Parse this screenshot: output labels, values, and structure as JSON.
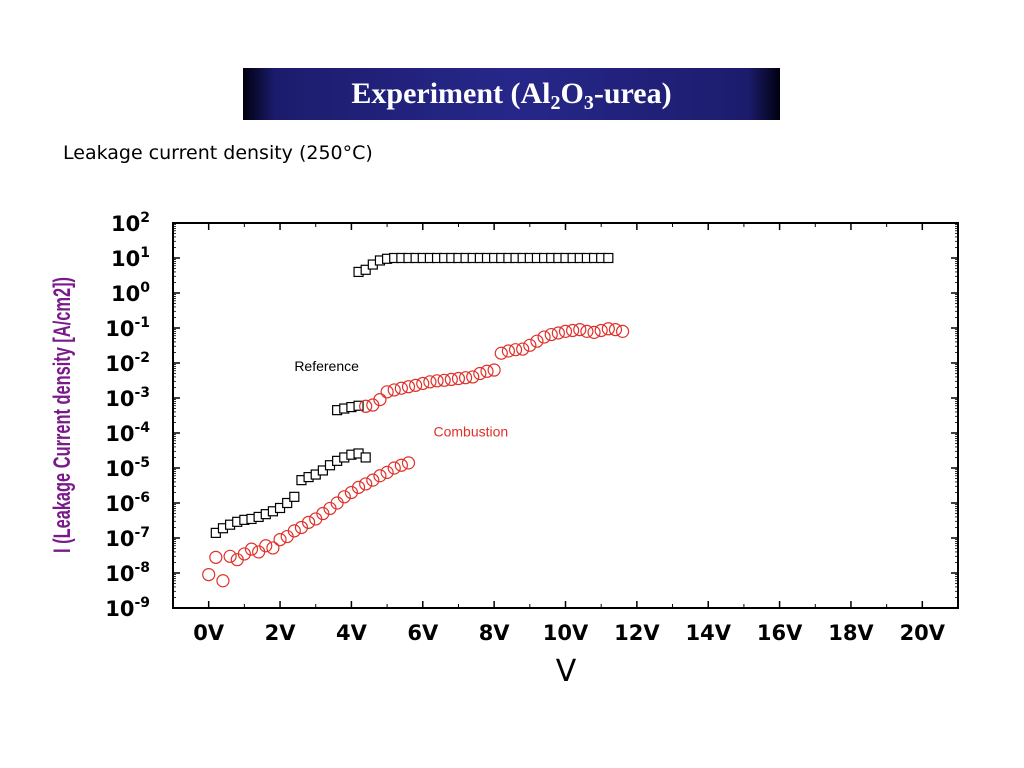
{
  "slide": {
    "title_main": "Experiment (Al",
    "title_sub1": "2",
    "title_mid": "O",
    "title_sub2": "3",
    "title_end": "-urea)",
    "subtitle": "Leakage current density (250°C)"
  },
  "colors": {
    "banner": "#27278a",
    "ylabel": "#7a1a8a",
    "reference": "#000000",
    "combustion": "#e0302a"
  },
  "chart_data": {
    "type": "scatter",
    "title": "Leakage current density (250°C)",
    "xlabel": "V",
    "ylabel": "I (Leakage Current density [A/cm2])",
    "xlim": [
      -1,
      21
    ],
    "ylim_log10": [
      -9,
      2
    ],
    "y_scale": "log",
    "x_ticks": [
      0,
      2,
      4,
      6,
      8,
      10,
      12,
      14,
      16,
      18,
      20
    ],
    "x_tick_labels": [
      "0V",
      "2V",
      "4V",
      "6V",
      "8V",
      "10V",
      "12V",
      "14V",
      "16V",
      "18V",
      "20V"
    ],
    "y_ticks_exp": [
      2,
      1,
      0,
      -1,
      -2,
      -3,
      -4,
      -5,
      -6,
      -7,
      -8,
      -9
    ],
    "y_tick_base": "10",
    "y_tick_exp_labels": [
      "2",
      "1",
      "0",
      "-1",
      "-2",
      "-3",
      "-4",
      "-5",
      "-6",
      "-7",
      "-8",
      "-9"
    ],
    "grid": false,
    "series": [
      {
        "name": "Reference",
        "marker": "square",
        "color": "#000000",
        "points": [
          [
            0.2,
            1.4e-07
          ],
          [
            0.4,
            1.9e-07
          ],
          [
            0.6,
            2.4e-07
          ],
          [
            0.8,
            2.9e-07
          ],
          [
            1.0,
            3.3e-07
          ],
          [
            1.2,
            3.5e-07
          ],
          [
            1.4,
            4e-07
          ],
          [
            1.6,
            4.8e-07
          ],
          [
            1.8,
            5.8e-07
          ],
          [
            2.0,
            7.2e-07
          ],
          [
            2.2,
            1e-06
          ],
          [
            2.4,
            1.5e-06
          ],
          [
            2.6,
            4.5e-06
          ],
          [
            2.8,
            5.5e-06
          ],
          [
            3.0,
            6.5e-06
          ],
          [
            3.2,
            8.5e-06
          ],
          [
            3.4,
            1.2e-05
          ],
          [
            3.6,
            1.6e-05
          ],
          [
            3.8,
            2e-05
          ],
          [
            4.0,
            2.4e-05
          ],
          [
            4.2,
            2.6e-05
          ],
          [
            4.4,
            2e-05
          ],
          [
            3.6,
            0.00045
          ],
          [
            3.8,
            0.0005
          ],
          [
            4.0,
            0.00055
          ],
          [
            4.2,
            0.0006
          ],
          [
            4.2,
            4.0
          ],
          [
            4.4,
            4.6
          ],
          [
            4.6,
            6.5
          ],
          [
            4.8,
            8.5
          ],
          [
            5.0,
            9.5
          ],
          [
            5.2,
            10
          ],
          [
            5.4,
            10
          ],
          [
            5.6,
            10
          ],
          [
            5.8,
            10
          ],
          [
            6.0,
            10
          ],
          [
            6.2,
            10
          ],
          [
            6.4,
            10
          ],
          [
            6.6,
            10
          ],
          [
            6.8,
            10
          ],
          [
            7.0,
            10
          ],
          [
            7.2,
            10
          ],
          [
            7.4,
            10
          ],
          [
            7.6,
            10
          ],
          [
            7.8,
            10
          ],
          [
            8.0,
            10
          ],
          [
            8.2,
            10
          ],
          [
            8.4,
            10
          ],
          [
            8.6,
            10
          ],
          [
            8.8,
            10
          ],
          [
            9.0,
            10
          ],
          [
            9.2,
            10
          ],
          [
            9.4,
            10
          ],
          [
            9.6,
            10
          ],
          [
            9.8,
            10
          ],
          [
            10.0,
            10
          ],
          [
            10.2,
            10
          ],
          [
            10.4,
            10
          ],
          [
            10.6,
            10
          ],
          [
            10.8,
            10
          ],
          [
            11.0,
            10
          ],
          [
            11.2,
            10
          ]
        ]
      },
      {
        "name": "Combustion",
        "marker": "circle",
        "color": "#e0302a",
        "points": [
          [
            0.0,
            9e-09
          ],
          [
            0.4,
            6e-09
          ],
          [
            0.2,
            2.8e-08
          ],
          [
            0.6,
            3e-08
          ],
          [
            0.8,
            2.4e-08
          ],
          [
            1.0,
            3.5e-08
          ],
          [
            1.2,
            4.8e-08
          ],
          [
            1.4,
            4e-08
          ],
          [
            1.6,
            6e-08
          ],
          [
            1.8,
            5.2e-08
          ],
          [
            2.0,
            9e-08
          ],
          [
            2.2,
            1.1e-07
          ],
          [
            2.4,
            1.6e-07
          ],
          [
            2.6,
            2e-07
          ],
          [
            2.8,
            2.8e-07
          ],
          [
            3.0,
            3.5e-07
          ],
          [
            3.2,
            5e-07
          ],
          [
            3.4,
            7e-07
          ],
          [
            3.6,
            1e-06
          ],
          [
            3.8,
            1.5e-06
          ],
          [
            4.0,
            2e-06
          ],
          [
            4.2,
            2.8e-06
          ],
          [
            4.4,
            3.5e-06
          ],
          [
            4.6,
            4.5e-06
          ],
          [
            4.8,
            6e-06
          ],
          [
            5.0,
            7.5e-06
          ],
          [
            5.2,
            1e-05
          ],
          [
            5.4,
            1.2e-05
          ],
          [
            5.6,
            1.4e-05
          ],
          [
            4.4,
            0.00058
          ],
          [
            4.6,
            0.00063
          ],
          [
            4.8,
            0.0009
          ],
          [
            5.0,
            0.0015
          ],
          [
            5.2,
            0.0017
          ],
          [
            5.4,
            0.0019
          ],
          [
            5.6,
            0.0021
          ],
          [
            5.8,
            0.0023
          ],
          [
            6.0,
            0.0026
          ],
          [
            6.2,
            0.0029
          ],
          [
            6.4,
            0.0031
          ],
          [
            6.6,
            0.0032
          ],
          [
            6.8,
            0.0034
          ],
          [
            7.0,
            0.0036
          ],
          [
            7.2,
            0.0038
          ],
          [
            7.4,
            0.004
          ],
          [
            7.6,
            0.005
          ],
          [
            7.8,
            0.0058
          ],
          [
            8.0,
            0.0063
          ],
          [
            8.2,
            0.019
          ],
          [
            8.4,
            0.022
          ],
          [
            8.6,
            0.024
          ],
          [
            8.8,
            0.025
          ],
          [
            9.0,
            0.032
          ],
          [
            9.2,
            0.042
          ],
          [
            9.4,
            0.055
          ],
          [
            9.6,
            0.065
          ],
          [
            9.8,
            0.072
          ],
          [
            10.0,
            0.08
          ],
          [
            10.2,
            0.085
          ],
          [
            10.4,
            0.09
          ],
          [
            10.6,
            0.08
          ],
          [
            10.8,
            0.075
          ],
          [
            11.0,
            0.085
          ],
          [
            11.2,
            0.095
          ],
          [
            11.4,
            0.09
          ],
          [
            11.6,
            0.08
          ]
        ]
      }
    ],
    "annotations": [
      {
        "text": "Reference",
        "x": 2.4,
        "y": 0.006,
        "color": "#000000"
      },
      {
        "text": "Combustion",
        "x": 6.3,
        "y": 8e-05,
        "color": "#e0302a"
      }
    ]
  }
}
